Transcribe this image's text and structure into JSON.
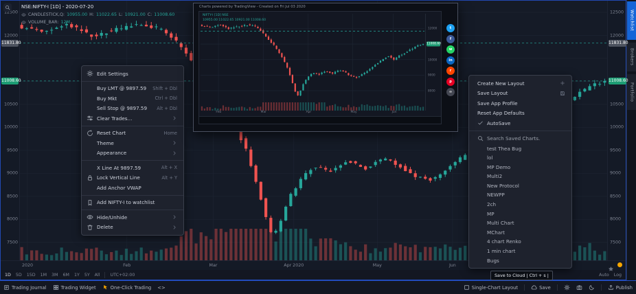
{
  "colors": {
    "accent": "#2962ff",
    "up": "#26a69a",
    "down": "#ef5350",
    "grid": "#1d2432",
    "bg": "#131722",
    "panel": "#1e222d",
    "badge_gray": "#4c525e",
    "badge_green": "#1d9d74",
    "orange": "#f7a600",
    "tab_active": "#1565d8"
  },
  "legend": {
    "title": "NSE:NIFTY-I [1D] - 2020-07-20",
    "series_label": "CANDLESTICK,Q:",
    "open": "10955.00",
    "high_label": "H:",
    "high": "11022.65",
    "low_label": "L:",
    "low": "10921.00",
    "close_label": "C:",
    "close": "11008.60",
    "volume_label": "VOLUME_BAR:",
    "volume_value": "12M"
  },
  "price_scale": {
    "ticks": [
      12500,
      12000,
      10500,
      10000,
      9500,
      9000,
      8500,
      8000,
      7500
    ],
    "badges": [
      {
        "text": "11831.80",
        "price": 11831.8,
        "style": "gray"
      },
      {
        "text": "11008.60",
        "price": 11008.6,
        "style": "green"
      }
    ]
  },
  "time_axis": {
    "labels": [
      {
        "text": "2020",
        "f": 0.014
      },
      {
        "text": "Feb",
        "f": 0.183
      },
      {
        "text": "Mar",
        "f": 0.33
      },
      {
        "text": "Apr 2020",
        "f": 0.467
      },
      {
        "text": "May",
        "f": 0.609
      },
      {
        "text": "Jun",
        "f": 0.737
      }
    ]
  },
  "chart": {
    "type": "candlestick",
    "symbol": "NSE:NIFTY-I",
    "interval": "1D",
    "last_price": 11008.6,
    "dashed_levels": [
      11831.8,
      11008.6
    ],
    "trend_anchors": [
      [
        0,
        12180
      ],
      [
        0.04,
        12060
      ],
      [
        0.08,
        12240
      ],
      [
        0.12,
        11990
      ],
      [
        0.16,
        12120
      ],
      [
        0.2,
        12240
      ],
      [
        0.24,
        12150
      ],
      [
        0.27,
        11800
      ],
      [
        0.3,
        11300
      ],
      [
        0.33,
        10850
      ],
      [
        0.36,
        10200
      ],
      [
        0.385,
        9500
      ],
      [
        0.405,
        8700
      ],
      [
        0.42,
        8000
      ],
      [
        0.43,
        7610
      ],
      [
        0.445,
        8000
      ],
      [
        0.46,
        8500
      ],
      [
        0.48,
        8900
      ],
      [
        0.5,
        9150
      ],
      [
        0.53,
        9050
      ],
      [
        0.56,
        9280
      ],
      [
        0.59,
        9100
      ],
      [
        0.62,
        9350
      ],
      [
        0.65,
        9150
      ],
      [
        0.67,
        8950
      ],
      [
        0.7,
        8850
      ],
      [
        0.73,
        9100
      ],
      [
        0.76,
        9400
      ],
      [
        0.79,
        9750
      ],
      [
        0.82,
        10050
      ],
      [
        0.845,
        10250
      ],
      [
        0.865,
        9980
      ],
      [
        0.89,
        10250
      ],
      [
        0.92,
        10450
      ],
      [
        0.95,
        10700
      ],
      [
        0.975,
        10900
      ],
      [
        1,
        11008.6
      ]
    ]
  },
  "context_menu": {
    "items": [
      {
        "icon": "gear",
        "label": "Edit Settings"
      },
      {
        "divider": true
      },
      {
        "label": "Buy LMT @ 9897.59",
        "shortcut": "Shift + Dbl"
      },
      {
        "label": "Buy Mkt",
        "shortcut": "Ctrl + Dbl"
      },
      {
        "label": "Sell Stop @ 9897.59",
        "shortcut": "Alt + Dbl"
      },
      {
        "icon": "sliders",
        "label": "Clear Trades...",
        "submenu": true
      },
      {
        "divider": true
      },
      {
        "icon": "reset",
        "label": "Reset Chart",
        "shortcut": "Home"
      },
      {
        "label": "Theme",
        "submenu": true
      },
      {
        "label": "Appearance",
        "submenu": true
      },
      {
        "divider": true
      },
      {
        "label": "X Line At 9897.59",
        "shortcut": "Alt + X"
      },
      {
        "icon": "lock",
        "label": "Lock Vertical Line",
        "shortcut": "Alt + Y"
      },
      {
        "label": "Add Anchor VWAP"
      },
      {
        "divider": true
      },
      {
        "icon": "bookmark",
        "label": "Add NIFTY-I to watchlist"
      },
      {
        "divider": true
      },
      {
        "icon": "eye",
        "label": "Hide/Unhide",
        "submenu": true
      },
      {
        "icon": "trash",
        "label": "Delete",
        "submenu": true
      }
    ]
  },
  "layout_menu": {
    "items": [
      {
        "label": "Create New Layout",
        "right_icon": "plus"
      },
      {
        "label": "Save Layout",
        "right_icon": "save"
      },
      {
        "label": "Save App Profile"
      },
      {
        "label": "Reset App Defaults"
      },
      {
        "icon": "check",
        "label": "AutoSave"
      },
      {
        "divider": true
      },
      {
        "search": true
      }
    ],
    "search_placeholder": "Search Saved Charts.",
    "saved_charts": [
      "test Thea Bug",
      "lol",
      "MP Demo",
      "Multi2",
      "New Protocol",
      "NEWPP",
      "2ch",
      "MP",
      "Multi Chart",
      "MChart",
      "4 chart Renko",
      "1 min chart",
      "Bugs"
    ]
  },
  "preview": {
    "header": "Charts powered by TradingView - Created on Fri Jul 03 2020",
    "legend_line1": "NIFTY-I [1D] NSE",
    "legend_line2": "10955.00  11022.65  10921.00  11008.60",
    "badge": "11008.60",
    "ticks": [
      12000,
      11000,
      10000,
      9000,
      8000
    ],
    "months": [
      "Feb",
      "Mar",
      "Apr",
      "May",
      "Jun"
    ],
    "month_fractions": [
      0.08,
      0.28,
      0.48,
      0.68,
      0.86
    ],
    "social": [
      {
        "name": "twitter",
        "color": "#1da1f2",
        "glyph": "t"
      },
      {
        "name": "facebook",
        "color": "#3b5998",
        "glyph": "f"
      },
      {
        "name": "whatsapp",
        "color": "#25d366",
        "glyph": "w"
      },
      {
        "name": "linkedin",
        "color": "#0a66c2",
        "glyph": "in"
      },
      {
        "name": "reddit",
        "color": "#ff4500",
        "glyph": "r"
      },
      {
        "name": "pinterest",
        "color": "#e60023",
        "glyph": "p"
      },
      {
        "name": "copy-link",
        "color": "#434651",
        "glyph": "∞"
      }
    ]
  },
  "tf_bar": {
    "items": [
      "1D",
      "5D",
      "15D",
      "1M",
      "3M",
      "6M",
      "1Y",
      "5Y",
      "All"
    ],
    "active": "1D",
    "timezone": "UTC+02:00",
    "right_labels": [
      "Auto",
      "Log"
    ]
  },
  "side_tabs": {
    "items": [
      {
        "label": "Watchlist",
        "active": true
      },
      {
        "label": "Brokers",
        "active": false
      },
      {
        "label": "Portfolio",
        "active": false
      }
    ]
  },
  "status_bar": {
    "left": [
      {
        "icon": "journal",
        "label": "Trading Journal",
        "name": "trading-journal"
      },
      {
        "icon": "widget",
        "label": "Trading Widget",
        "name": "trading-widget"
      },
      {
        "icon": "cursor",
        "label": "One-Click Trading",
        "name": "one-click-trading",
        "icon_color": "#f7a600"
      },
      {
        "label": "<>",
        "name": "code-toggle"
      }
    ],
    "right": [
      {
        "icon": "layout",
        "label": "Single-Chart Layout",
        "name": "single-chart-layout"
      },
      {
        "sep": true
      },
      {
        "icon": "cloud",
        "label": "Save",
        "name": "save-button"
      },
      {
        "sep": true
      },
      {
        "icon": "gear",
        "name": "settings-button"
      },
      {
        "icon": "camera",
        "name": "screenshot-button"
      },
      {
        "icon": "moon",
        "name": "theme-toggle"
      },
      {
        "sep": true
      },
      {
        "icon": "publish",
        "label": "Publish",
        "name": "publish-button"
      }
    ]
  },
  "tooltip": {
    "text": "Save to Cloud | Ctrl + s |"
  }
}
